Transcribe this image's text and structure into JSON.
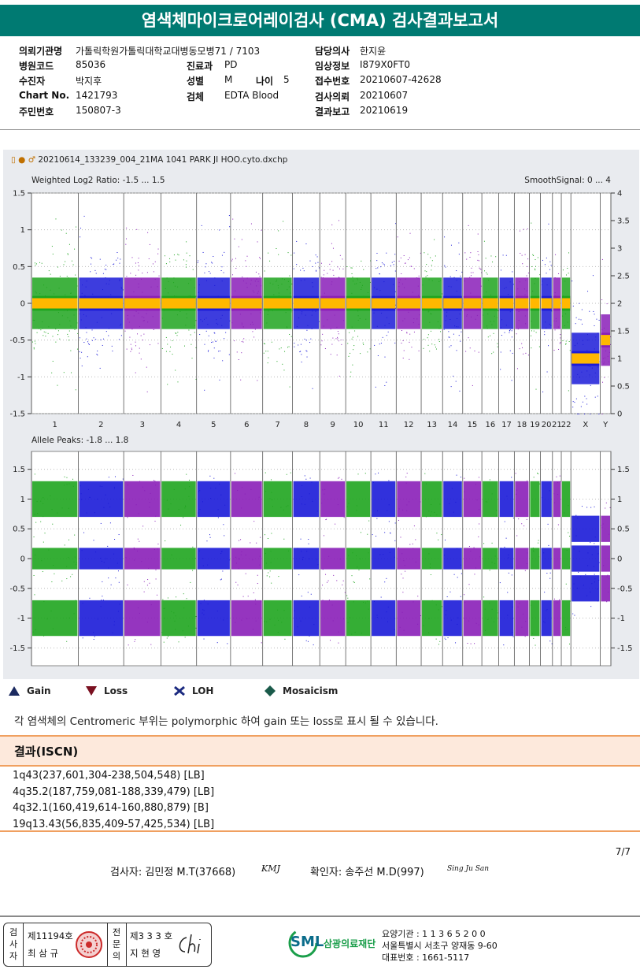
{
  "header": {
    "title": "염색체마이크로어레이검사 (CMA) 검사결과보고서"
  },
  "info": {
    "inst_label": "의뢰기관명",
    "inst_value": "가톨릭학원가톨릭대학교대병동모병71 / 7103",
    "code_label": "병원코드",
    "code_value": "85036",
    "name_label": "수진자",
    "name_value": "박지후",
    "chart_label": "Chart No.",
    "chart_value": "1421793",
    "rrn_label": "주민번호",
    "rrn_value": "150807-3",
    "dept_label": "진료과",
    "dept_value": "PD",
    "sex_label": "성별",
    "sex_value": "M",
    "age_label": "나이",
    "age_value": "5",
    "specimen_label": "검체",
    "specimen_value": "EDTA Blood",
    "doctor_label": "담당의사",
    "doctor_value": "한지윤",
    "clinical_label": "임상정보",
    "clinical_value": "I879X0FT0",
    "accession_label": "접수번호",
    "accession_value": "20210607-42628",
    "request_label": "검사의뢰",
    "request_value": "20210607",
    "report_label": "결과보고",
    "report_value": "20210619"
  },
  "plot": {
    "file": "20210614_133239_004_21MA 1041 PARK JI HOO.cyto.dxchp",
    "top_label": "Weighted Log2 Ratio: -1.5 ... 1.5",
    "top_right_label": "SmoothSignal: 0 ... 4",
    "bottom_label": "Allele Peaks: -1.8 ... 1.8",
    "top_left_ticks": [
      "1.5",
      "1",
      "0.5",
      "0",
      "-0.5",
      "-1",
      "-1.5"
    ],
    "top_right_ticks": [
      "4",
      "3.5",
      "3",
      "2.5",
      "2",
      "1.5",
      "1",
      "0.5",
      "0"
    ],
    "bottom_ticks": [
      "1.5",
      "1",
      "0.5",
      "0",
      "-0.5",
      "-1",
      "-1.5"
    ],
    "chromosomes": [
      "1",
      "2",
      "3",
      "4",
      "5",
      "6",
      "7",
      "8",
      "9",
      "10",
      "11",
      "12",
      "13",
      "14",
      "15",
      "16",
      "17",
      "18",
      "19",
      "20",
      "21",
      "22",
      "X",
      "Y"
    ]
  },
  "legend": {
    "gain": "Gain",
    "loss": "Loss",
    "loh": "LOH",
    "mosaicism": "Mosaicism"
  },
  "note": "각 염색체의 Centromeric 부위는 polymorphic 하여 gain 또는 loss로 표시 될 수 있습니다.",
  "results": {
    "heading": "결과(ISCN)",
    "items": [
      "1q43(237,601,304-238,504,548) [LB]",
      "4q35.2(187,759,081-188,339,479) [LB]",
      "4q32.1(160,419,614-160,880,879) [B]",
      "19q13.43(56,835,409-57,425,534) [LB]"
    ]
  },
  "page": "7/7",
  "signers": {
    "tester": "검사자: 김민정 M.T(37668)",
    "tester_sig": "KMJ",
    "confirmer": "확인자: 송주선 M.D(997)",
    "confirmer_sig": "Sing Ju San"
  },
  "footer": {
    "inspector_title": [
      "검",
      "사",
      "자"
    ],
    "inspector_no": "제11194호",
    "inspector_name": "최 삼 규",
    "specialist_title": [
      "전",
      "문",
      "의"
    ],
    "specialist_no": "제3 3 3 호",
    "specialist_name": "지 현 영",
    "logo_text": "SML",
    "org_name": "삼광의료재단",
    "care_no": "요양기관 : 1 1 3 6 5 2 0 0",
    "address": "서울특별시 서초구 양재동 9-60",
    "phone": "대표번호 : 1661-5117"
  },
  "colors": {
    "teal": "#007a72",
    "green": "#1fa51f",
    "blue": "#1b1bd8",
    "purple": "#8a1fb8",
    "orange": "#ffb800",
    "accent": "#f0a060"
  }
}
